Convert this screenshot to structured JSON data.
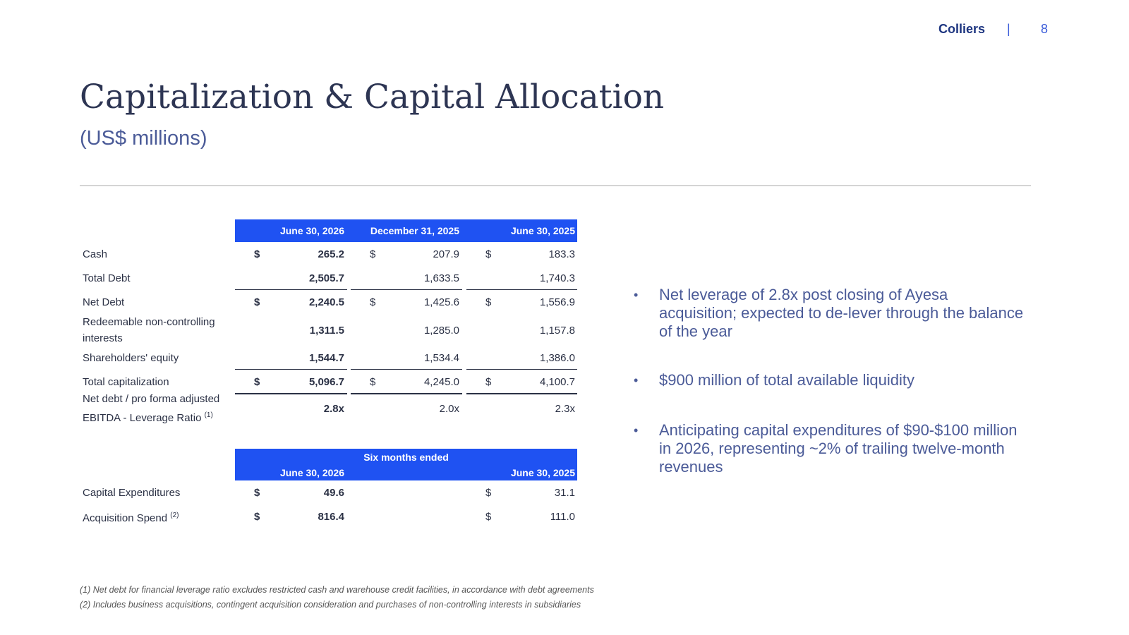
{
  "header": {
    "brand": "Colliers",
    "separator": "|",
    "page": "8"
  },
  "title": "Capitalization & Capital Allocation",
  "subtitle": "(US$ millions)",
  "table1": {
    "columns": [
      "June 30, 2026",
      "December 31, 2025",
      "June 30, 2025"
    ],
    "rows": [
      {
        "label": "Cash",
        "cells": [
          {
            "sym": "$",
            "text": "265.2"
          },
          {
            "sym": "$",
            "text": "207.9"
          },
          {
            "sym": "$",
            "text": "183.3"
          }
        ]
      },
      {
        "label": "Total Debt",
        "cells": [
          {
            "text": "2,505.7"
          },
          {
            "text": "1,633.5"
          },
          {
            "text": "1,740.3"
          }
        ]
      },
      {
        "label": "Net Debt",
        "cells": [
          {
            "sym": "$",
            "text": "2,240.5"
          },
          {
            "sym": "$",
            "text": "1,425.6"
          },
          {
            "sym": "$",
            "text": "1,556.9"
          }
        ]
      },
      {
        "label": "Redeemable non-controlling interests",
        "cells": [
          {
            "text": "1,311.5"
          },
          {
            "text": "1,285.0"
          },
          {
            "text": "1,157.8"
          }
        ]
      },
      {
        "label": "Shareholders' equity",
        "cells": [
          {
            "text": "1,544.7"
          },
          {
            "text": "1,534.4"
          },
          {
            "text": "1,386.0"
          }
        ]
      },
      {
        "label": "Total capitalization",
        "cells": [
          {
            "sym": "$",
            "text": "5,096.7"
          },
          {
            "sym": "$",
            "text": "4,245.0"
          },
          {
            "sym": "$",
            "text": "4,100.7"
          }
        ]
      },
      {
        "label": "Net debt / pro forma adjusted EBITDA - Leverage Ratio",
        "note": "(1)",
        "cells": [
          {
            "text": "2.8x"
          },
          {
            "text": "2.0x"
          },
          {
            "text": "2.3x"
          }
        ]
      }
    ]
  },
  "table2": {
    "caption": "Six months ended",
    "columns": [
      "June 30, 2026",
      "June 30, 2025"
    ],
    "rows": [
      {
        "label": "Capital Expenditures",
        "cells": [
          {
            "sym": "$",
            "text": "49.6"
          },
          {
            "sym": "$",
            "text": "31.1"
          }
        ]
      },
      {
        "label": "Acquisition Spend",
        "note": "(2)",
        "cells": [
          {
            "sym": "$",
            "text": "816.4"
          },
          {
            "sym": "$",
            "text": "111.0"
          }
        ]
      }
    ]
  },
  "bullets": [
    "Net leverage of 2.8x post closing of Ayesa acquisition; expected to de-lever through the balance of the year",
    "$900 million of total available liquidity",
    "Anticipating capital expenditures of $90-$100 million in 2026, representing ~2% of trailing twelve-month revenues"
  ],
  "footnotes": [
    "(1) Net debt for financial leverage ratio excludes restricted cash and warehouse credit facilities, in accordance with debt agreements",
    "(2) Includes business acquisitions, contingent acquisition consideration and purchases of non-controlling interests in subsidiaries"
  ]
}
